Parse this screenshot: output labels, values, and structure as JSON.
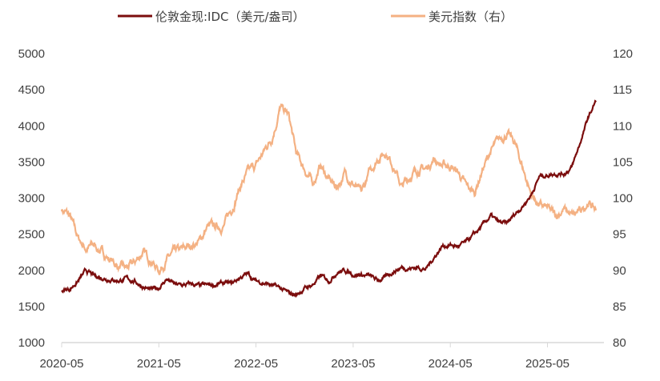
{
  "chart_data": {
    "type": "line",
    "title": "",
    "legend": [
      "伦敦金现:IDC（美元/盎司）",
      "美元指数（右）"
    ],
    "legend_position": "top",
    "colors": {
      "gold": "#7b0d0d",
      "dxy": "#f4b183",
      "axis": "#d9d9d9"
    },
    "x_start": "2020-05",
    "interval": "monthly",
    "x_tick_labels": [
      "2020-05",
      "2021-05",
      "2022-05",
      "2023-05",
      "2024-05",
      "2025-05"
    ],
    "y_left": {
      "ylim": [
        1000,
        5000
      ],
      "ticks": [
        "1000",
        "1500",
        "2000",
        "2500",
        "3000",
        "3500",
        "4000",
        "4500",
        "5000"
      ]
    },
    "y_right": {
      "ylim": [
        80,
        120
      ],
      "ticks": [
        "80",
        "85",
        "90",
        "95",
        "100",
        "105",
        "110",
        "115",
        "120"
      ]
    },
    "series": [
      {
        "name": "伦敦金现:IDC（美元/盎司）",
        "axis": "left",
        "values": [
          1720,
          1740,
          1850,
          1990,
          1920,
          1900,
          1880,
          1860,
          1880,
          1850,
          1780,
          1720,
          1760,
          1880,
          1800,
          1790,
          1810,
          1780,
          1790,
          1800,
          1820,
          1810,
          1900,
          1950,
          1850,
          1830,
          1790,
          1750,
          1680,
          1660,
          1750,
          1800,
          1920,
          1860,
          1980,
          2000,
          1950,
          1940,
          1920,
          1860,
          1900,
          1990,
          2040,
          2030,
          2040,
          2020,
          2180,
          2340,
          2350,
          2330,
          2390,
          2500,
          2620,
          2750,
          2660,
          2640,
          2780,
          2900,
          3050,
          3300,
          3320,
          3350,
          3340,
          3420,
          3750,
          4100,
          4350
        ]
      },
      {
        "name": "美元指数（右）",
        "axis": "right",
        "values": [
          98.5,
          97.5,
          94.5,
          93.0,
          93.5,
          92.5,
          91.5,
          90.5,
          90.2,
          91.0,
          92.5,
          91.5,
          90.0,
          91.5,
          92.5,
          92.8,
          93.5,
          94.0,
          96.0,
          96.0,
          96.2,
          98.5,
          101.5,
          103.5,
          104.5,
          106.5,
          108.5,
          112.5,
          111.5,
          106.0,
          104.0,
          102.0,
          104.5,
          102.5,
          101.5,
          103.5,
          102.0,
          100.5,
          103.5,
          105.5,
          106.5,
          104.5,
          101.5,
          103.0,
          104.0,
          104.0,
          105.5,
          104.5,
          104.5,
          103.5,
          101.5,
          100.8,
          104.0,
          106.5,
          108.0,
          109.0,
          107.5,
          104.0,
          100.5,
          99.0,
          98.5,
          97.5,
          98.5,
          97.5,
          98.0,
          99.5,
          98.3
        ]
      }
    ]
  }
}
